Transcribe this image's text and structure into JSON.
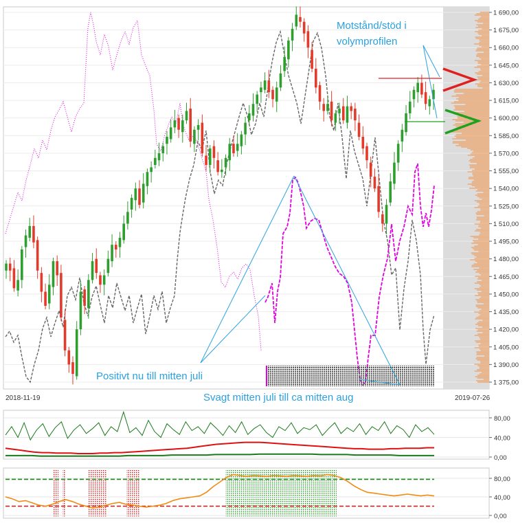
{
  "colors": {
    "candle_up": "#2e9e2e",
    "candle_down": "#e23b2b",
    "index_line": "#666666",
    "magenta": "#e000e0",
    "annotation": "#2aa0e0",
    "volume_profile": "#f0a060",
    "resistance": "#e02020",
    "support": "#20a020",
    "ind1_fast": "#1a7a1a",
    "ind1_slow": "#dd1111",
    "ind2_line": "#f08a10",
    "ind2_upper": "#188818",
    "ind2_lower": "#dd1111"
  },
  "main": {
    "date_start": "2018-11-19",
    "date_end": "2019-07-26",
    "annotations": {
      "resistance_support": "Motstånd/stöd i\nvolymprofilen",
      "positive": "Positivt nu till mitten juli",
      "weak": "Svagt mitten juli till ca mitten aug"
    }
  },
  "chart_data": [
    {
      "type": "candlestick",
      "y_axis_ticks": [
        "1 690,00",
        "1 675,00",
        "1 660,00",
        "1 645,00",
        "1 630,00",
        "1 615,00",
        "1 600,00",
        "1 585,00",
        "1 570,00",
        "1 555,00",
        "1 540,00",
        "1 525,00",
        "1 510,00",
        "1 495,00",
        "1 480,00",
        "1 465,00",
        "1 450,00",
        "1 435,00",
        "1 420,00",
        "1 405,00",
        "1 390,00",
        "1 375,00"
      ],
      "ylim": [
        1370,
        1695
      ],
      "x_range": [
        "2018-11-19",
        "2019-07-26"
      ],
      "closes": [
        1476,
        1470,
        1455,
        1462,
        1488,
        1500,
        1508,
        1494,
        1470,
        1452,
        1440,
        1458,
        1478,
        1466,
        1430,
        1402,
        1390,
        1382,
        1420,
        1452,
        1440,
        1462,
        1478,
        1468,
        1458,
        1466,
        1480,
        1492,
        1488,
        1498,
        1510,
        1520,
        1532,
        1540,
        1526,
        1544,
        1554,
        1558,
        1566,
        1570,
        1576,
        1584,
        1592,
        1598,
        1590,
        1598,
        1606,
        1580,
        1590,
        1594,
        1570,
        1560,
        1574,
        1566,
        1554,
        1556,
        1566,
        1578,
        1570,
        1578,
        1586,
        1596,
        1604,
        1612,
        1620,
        1626,
        1632,
        1622,
        1616,
        1626,
        1638,
        1652,
        1666,
        1676,
        1688,
        1682,
        1672,
        1660,
        1642,
        1626,
        1614,
        1606,
        1612,
        1598,
        1604,
        1608,
        1598,
        1610,
        1606,
        1598,
        1584,
        1574,
        1564,
        1550,
        1540,
        1520,
        1510,
        1526,
        1546,
        1562,
        1578,
        1590,
        1604,
        1614,
        1624,
        1630,
        1620,
        1612,
        1616,
        1624
      ]
    },
    {
      "type": "line",
      "name": "panel-1",
      "y_axis_ticks": [
        "0,00",
        "40,00",
        "80,00"
      ],
      "ylim": [
        0,
        100
      ],
      "series": [
        {
          "values": [
            45,
            62,
            40,
            70,
            35,
            55,
            68,
            42,
            60,
            72,
            38,
            55,
            66,
            48,
            58,
            70,
            44,
            62,
            52,
            92,
            50,
            60,
            44,
            75,
            52,
            40,
            68,
            56,
            46,
            72,
            54,
            62,
            48,
            70,
            58,
            44,
            64,
            50,
            72,
            46,
            58,
            66,
            50,
            40,
            62,
            54,
            70,
            48,
            60,
            56,
            66,
            44,
            58,
            70,
            48,
            60,
            52,
            68,
            46,
            62,
            54,
            72,
            48,
            64,
            56,
            40,
            66,
            52,
            60,
            46
          ]
        },
        {
          "values": [
            18,
            16,
            14,
            12,
            10,
            9,
            9,
            8,
            8,
            8,
            7,
            7,
            7,
            8,
            8,
            9,
            9,
            10,
            11,
            12,
            13,
            14,
            15,
            16,
            17,
            18,
            20,
            22,
            24,
            26,
            27,
            28,
            29,
            30,
            30,
            30,
            29,
            28,
            27,
            26,
            25,
            24,
            23,
            22,
            21,
            20,
            19,
            18,
            17,
            17,
            16,
            16,
            16,
            17,
            17,
            18,
            18,
            18,
            19,
            19
          ]
        },
        {
          "values": [
            3,
            3,
            3,
            3,
            2,
            2,
            2,
            2,
            2,
            2,
            2,
            2,
            2,
            2,
            3,
            3,
            3,
            3,
            3,
            4,
            4,
            4,
            4,
            4,
            5,
            5,
            5,
            5,
            5,
            6,
            6,
            6,
            6,
            6,
            6,
            6,
            5,
            5,
            5,
            5,
            4,
            4,
            4,
            4,
            4,
            3,
            3,
            3,
            3,
            3
          ]
        }
      ]
    },
    {
      "type": "line",
      "name": "panel-2",
      "y_axis_ticks": [
        "0,00",
        "40,00",
        "80,00"
      ],
      "ylim": [
        0,
        100
      ],
      "series": [
        {
          "values": [
            40,
            36,
            30,
            32,
            27,
            22,
            20,
            24,
            30,
            34,
            30,
            24,
            20,
            16,
            18,
            22,
            26,
            28,
            24,
            22,
            20,
            18,
            20,
            22,
            26,
            32,
            36,
            38,
            40,
            42,
            50,
            62,
            72,
            82,
            88,
            86,
            84,
            86,
            85,
            84,
            86,
            85,
            84,
            86,
            85,
            84,
            86,
            85,
            88,
            86,
            82,
            74,
            64,
            56,
            50,
            48,
            46,
            44,
            42,
            44,
            46,
            44,
            42,
            44,
            42
          ]
        },
        {
          "values": [
            78,
            78
          ]
        },
        {
          "values": [
            20,
            20
          ]
        }
      ]
    }
  ]
}
